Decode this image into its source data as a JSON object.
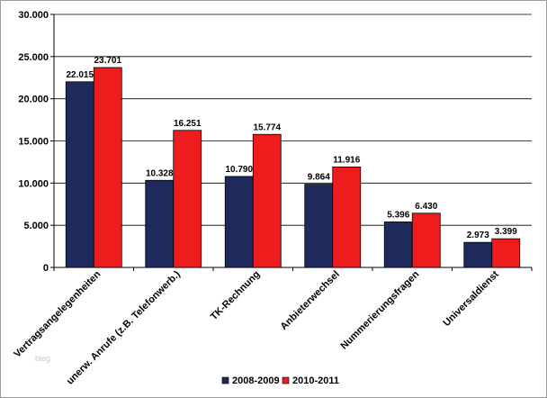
{
  "watermark": "bleg",
  "chart_data": {
    "type": "bar",
    "title": "",
    "xlabel": "",
    "ylabel": "",
    "categories": [
      "Vertragsangelegenheiten",
      "unerw. Anrufe (z.B. Telefonwerb.)",
      "TK-Rechnung",
      "Anbieterwechsel",
      "Nummerierungsfragen",
      "Universaldienst"
    ],
    "series": [
      {
        "name": "2008-2009",
        "color": "#1f2a5c",
        "values": [
          22015,
          10328,
          10790,
          9864,
          5396,
          2973
        ],
        "labels": [
          "22.015",
          "10.328",
          "10.790",
          "9.864",
          "5.396",
          "2.973"
        ]
      },
      {
        "name": "2010-2011",
        "color": "#ee1c1c",
        "values": [
          23701,
          16251,
          15774,
          11916,
          6430,
          3399
        ],
        "labels": [
          "23.701",
          "16.251",
          "15.774",
          "11.916",
          "6.430",
          "3.399"
        ]
      }
    ],
    "ylim": [
      0,
      30000
    ],
    "yticks": [
      0,
      5000,
      10000,
      15000,
      20000,
      25000,
      30000
    ],
    "ytick_labels": [
      "0",
      "5.000",
      "10.000",
      "15.000",
      "20.000",
      "25.000",
      "30.000"
    ],
    "grid": true,
    "legend_position": "bottom-center"
  }
}
